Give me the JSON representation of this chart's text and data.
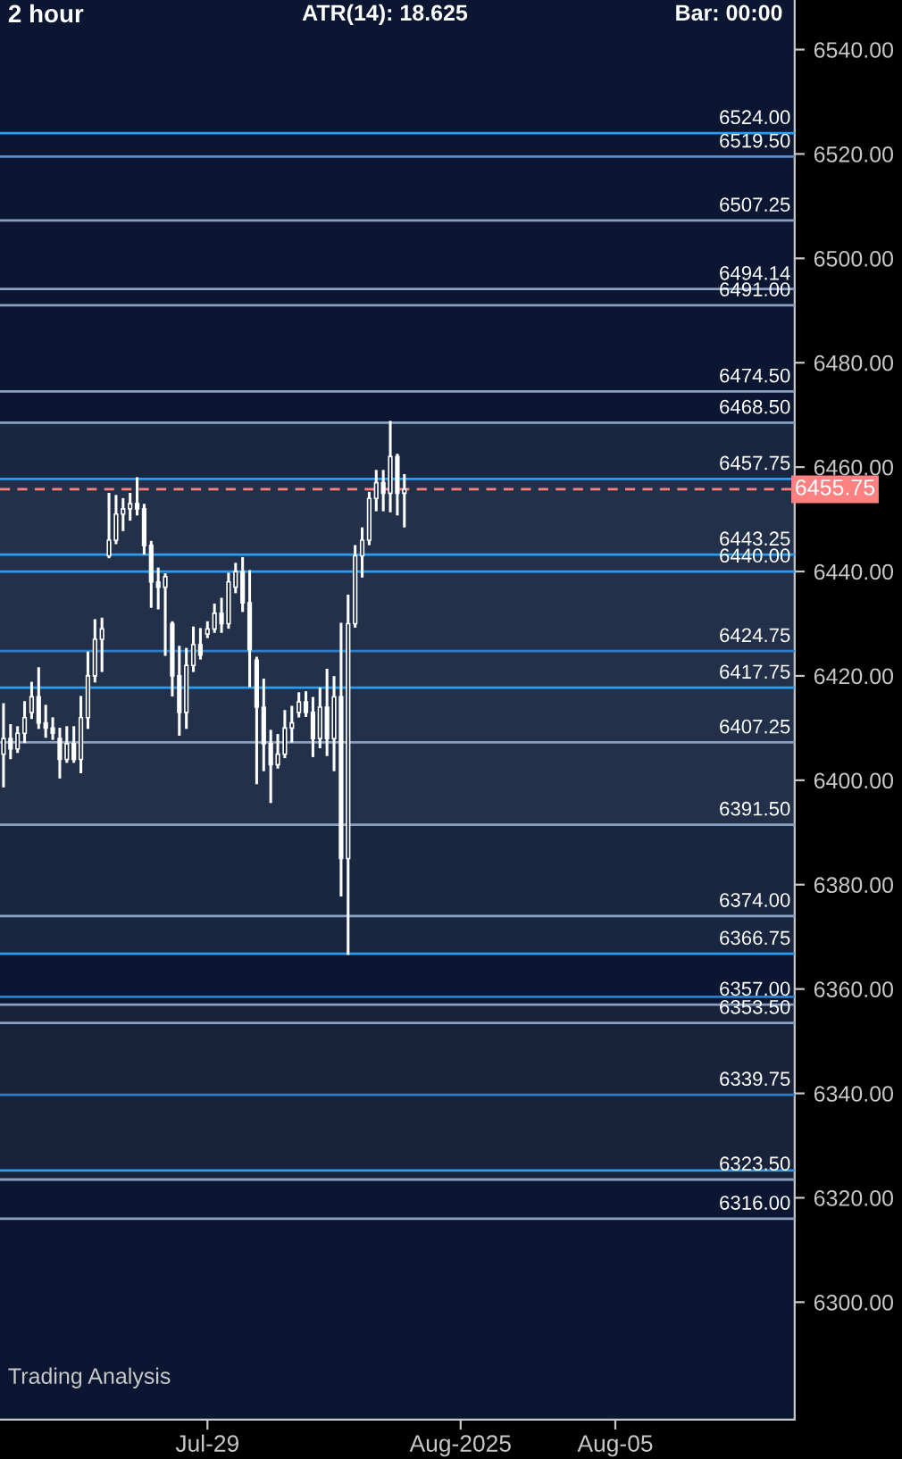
{
  "chart_data": {
    "type": "candlestick",
    "title": "2 hour",
    "annotations": [
      "ATR(14): 18.625",
      "Bar: 00:00",
      "Trading Analysis"
    ],
    "categories": [
      null,
      null,
      null,
      null,
      null,
      null,
      null,
      null,
      null,
      null,
      null,
      null,
      null,
      null,
      null,
      null,
      null,
      null,
      null,
      null,
      null,
      null,
      null,
      null,
      null,
      null,
      null,
      null,
      null,
      "Jul-29",
      null,
      null,
      null,
      null,
      null,
      null,
      null,
      null,
      null,
      null,
      null,
      null,
      null,
      null,
      null,
      null,
      null,
      null,
      null,
      null,
      null,
      null,
      null,
      null,
      null,
      null,
      null,
      null,
      null,
      null,
      null,
      null,
      null,
      null,
      null,
      "Aug-2025",
      null,
      null,
      null,
      null,
      null,
      null,
      null,
      null,
      null,
      null,
      null,
      null,
      null,
      null,
      null,
      null,
      null,
      null,
      null,
      null,
      null,
      "Aug-05",
      null,
      null,
      null,
      null,
      null,
      null,
      null,
      null,
      null,
      null,
      null,
      null,
      null,
      null,
      null,
      null,
      null,
      null,
      null,
      null,
      null,
      null,
      null,
      null,
      null
    ],
    "ohlc": [
      [
        6405,
        6414.5,
        6398.9,
        6408
      ],
      [
        6408,
        6410.5,
        6404.3,
        6406
      ],
      [
        6406,
        6410.1,
        6405.5,
        6409
      ],
      [
        6409,
        6414.9,
        6407.4,
        6412
      ],
      [
        6413,
        6418.6,
        6412,
        6416
      ],
      [
        6416,
        6421.4,
        6410.1,
        6411
      ],
      [
        6411,
        6414.2,
        6408.4,
        6410
      ],
      [
        6410,
        6411.8,
        6408,
        6409
      ],
      [
        6408,
        6409.8,
        6400.6,
        6404
      ],
      [
        6404,
        6410.1,
        6403.6,
        6407
      ],
      [
        6407,
        6410.1,
        6403.6,
        6404
      ],
      [
        6404,
        6415.9,
        6401.6,
        6412
      ],
      [
        6412,
        6424.4,
        6410.1,
        6420
      ],
      [
        6420,
        6430.6,
        6419,
        6427
      ],
      [
        6427,
        6430.9,
        6421,
        6429
      ],
      [
        6443,
        6454.8,
        6442.8,
        6446
      ],
      [
        6446,
        6454.4,
        6445.5,
        6451
      ],
      [
        6451,
        6453.8,
        6448,
        6452
      ],
      [
        6452,
        6454.8,
        6450,
        6453
      ],
      [
        6453,
        6457.8,
        6451,
        6452
      ],
      [
        6452,
        6452.7,
        6443.5,
        6445
      ],
      [
        6445,
        6445.6,
        6433.3,
        6438
      ],
      [
        6438,
        6440.5,
        6433,
        6437
      ],
      [
        6437,
        6439.4,
        6424.1,
        6439
      ],
      [
        6430,
        6430.2,
        6416.3,
        6420
      ],
      [
        6420,
        6425.5,
        6408.8,
        6413
      ],
      [
        6413,
        6425.1,
        6410.1,
        6422
      ],
      [
        6422,
        6429.2,
        6421,
        6426
      ],
      [
        6426,
        6428.9,
        6423.4,
        6424
      ],
      [
        6428,
        6430.2,
        6427.5,
        6429
      ],
      [
        6429,
        6433.6,
        6428.5,
        6432
      ],
      [
        6432,
        6434.7,
        6428.5,
        6430
      ],
      [
        6430,
        6439.5,
        6429.3,
        6438
      ],
      [
        6437,
        6441.4,
        6436.1,
        6440
      ],
      [
        6440,
        6442.5,
        6432.5,
        6434
      ],
      [
        6434,
        6440,
        6418.1,
        6425
      ],
      [
        6423,
        6423.4,
        6399.5,
        6414
      ],
      [
        6414,
        6419.2,
        6402,
        6407
      ],
      [
        6407,
        6409.4,
        6395.9,
        6403
      ],
      [
        6403,
        6408.6,
        6402.5,
        6405
      ],
      [
        6405,
        6413.2,
        6404.5,
        6410
      ],
      [
        6410,
        6414,
        6407.5,
        6411
      ],
      [
        6413,
        6416.6,
        6412.3,
        6415
      ],
      [
        6415,
        6416.8,
        6412.4,
        6413
      ],
      [
        6413,
        6415.7,
        6404.7,
        6408
      ],
      [
        6408,
        6417.5,
        6406.4,
        6414
      ],
      [
        6414,
        6421.1,
        6404.9,
        6408
      ],
      [
        6408,
        6419.7,
        6402,
        6416
      ],
      [
        6416,
        6429.9,
        6378,
        6385
      ],
      [
        6385,
        6435.3,
        6366.8,
        6430
      ],
      [
        6430,
        6444.8,
        6429.5,
        6443
      ],
      [
        6443,
        6448.2,
        6439.1,
        6446
      ],
      [
        6446,
        6455,
        6445.3,
        6454
      ],
      [
        6454,
        6459.2,
        6451.8,
        6457
      ],
      [
        6457,
        6459.2,
        6451.8,
        6455
      ],
      [
        6455,
        6468.6,
        6451.6,
        6462
      ],
      [
        6462,
        6462.3,
        6451,
        6455
      ],
      [
        6455,
        6458.4,
        6448.7,
        6455.75
      ],
      null,
      null,
      null,
      null,
      null,
      null,
      null,
      null,
      null,
      null,
      null,
      null,
      null,
      null,
      null,
      null,
      null,
      null,
      null,
      null,
      null,
      null,
      null,
      null,
      null,
      null,
      null,
      null,
      null,
      null,
      null,
      null,
      null,
      null,
      null,
      null,
      null,
      null,
      null,
      null,
      null,
      null,
      null,
      null,
      null,
      null,
      null,
      null,
      null,
      null,
      null,
      null,
      null,
      null,
      null
    ],
    "color": "#ffffff",
    "ylim": [
      6277.5,
      6549.5
    ],
    "yticks": [
      {
        "value": 6300,
        "label": "6300.00"
      },
      {
        "value": 6320,
        "label": "6320.00"
      },
      {
        "value": 6340,
        "label": "6340.00"
      },
      {
        "value": 6360,
        "label": "6360.00"
      },
      {
        "value": 6380,
        "label": "6380.00"
      },
      {
        "value": 6400,
        "label": "6400.00"
      },
      {
        "value": 6420,
        "label": "6420.00"
      },
      {
        "value": 6440,
        "label": "6440.00"
      },
      {
        "value": 6460,
        "label": "6460.00"
      },
      {
        "value": 6480,
        "label": "6480.00"
      },
      {
        "value": 6500,
        "label": "6500.00"
      },
      {
        "value": 6520,
        "label": "6520.00"
      },
      {
        "value": 6540,
        "label": "6540.00"
      }
    ],
    "tick_labels": "y_and_x",
    "ref_lines": [
      {
        "axis": "y",
        "value": 6524.0,
        "label": "6524.00",
        "color": "#2a9df4"
      },
      {
        "axis": "y",
        "value": 6519.5,
        "label": "6519.50",
        "color": "#5a8fd0"
      },
      {
        "axis": "y",
        "value": 6507.25,
        "label": "6507.25",
        "color": "#8aa0c0"
      },
      {
        "axis": "y",
        "value": 6494.14,
        "label": "6494.14",
        "color": "#8aa0c0"
      },
      {
        "axis": "y",
        "value": 6491.0,
        "label": "6491.00",
        "color": "#8aa0c0"
      },
      {
        "axis": "y",
        "value": 6474.5,
        "label": "6474.50",
        "color": "#8aa0c0"
      },
      {
        "axis": "y",
        "value": 6468.5,
        "label": "6468.50",
        "color": "#8aa0c0"
      },
      {
        "axis": "y",
        "value": 6457.75,
        "label": "6457.75",
        "color": "#2a9df4"
      },
      {
        "axis": "y",
        "value": 6455.75,
        "label": "6455.75",
        "color": "#ff8080",
        "line_style": "dashed"
      },
      {
        "axis": "y",
        "value": 6443.25,
        "label": "6443.25",
        "color": "#2a9df4"
      },
      {
        "axis": "y",
        "value": 6440.0,
        "label": "6440.00",
        "color": "#2a9df4"
      },
      {
        "axis": "y",
        "value": 6424.75,
        "label": "6424.75",
        "color": "#2a80c8"
      },
      {
        "axis": "y",
        "value": 6417.75,
        "label": "6417.75",
        "color": "#2a9df4"
      },
      {
        "axis": "y",
        "value": 6407.25,
        "label": "6407.25",
        "color": "#8aa0c0"
      },
      {
        "axis": "y",
        "value": 6391.5,
        "label": "6391.50",
        "color": "#8aa0c0"
      },
      {
        "axis": "y",
        "value": 6374.0,
        "label": "6374.00",
        "color": "#8aa0c0"
      },
      {
        "axis": "y",
        "value": 6366.75,
        "label": "6366.75",
        "color": "#2a9df4"
      },
      {
        "axis": "y",
        "value": 6358.5,
        "color": "#2a80c8"
      },
      {
        "axis": "y",
        "value": 6357.0,
        "label": "6357.00",
        "color": "#8aa0c0"
      },
      {
        "axis": "y",
        "value": 6353.5,
        "label": "6353.50",
        "color": "#8aa0c0"
      },
      {
        "axis": "y",
        "value": 6339.75,
        "label": "6339.75",
        "color": "#2a80c8"
      },
      {
        "axis": "y",
        "value": 6325.25,
        "color": "#2a9df4"
      },
      {
        "axis": "y",
        "value": 6323.5,
        "label": "6323.50",
        "color": "#8aa0c0"
      },
      {
        "axis": "y",
        "value": 6316.0,
        "label": "6316.00",
        "color": "#8aa0c0"
      }
    ],
    "bands": [
      {
        "axis": "y",
        "from": 6391.5,
        "to": 6457.75,
        "color": "#33415c"
      },
      {
        "axis": "y",
        "from": 6366.75,
        "to": 6468.5,
        "color": "#2c3a52"
      },
      {
        "axis": "y",
        "from": 6323.5,
        "to": 6357.0,
        "color": "#2a3448"
      }
    ]
  }
}
